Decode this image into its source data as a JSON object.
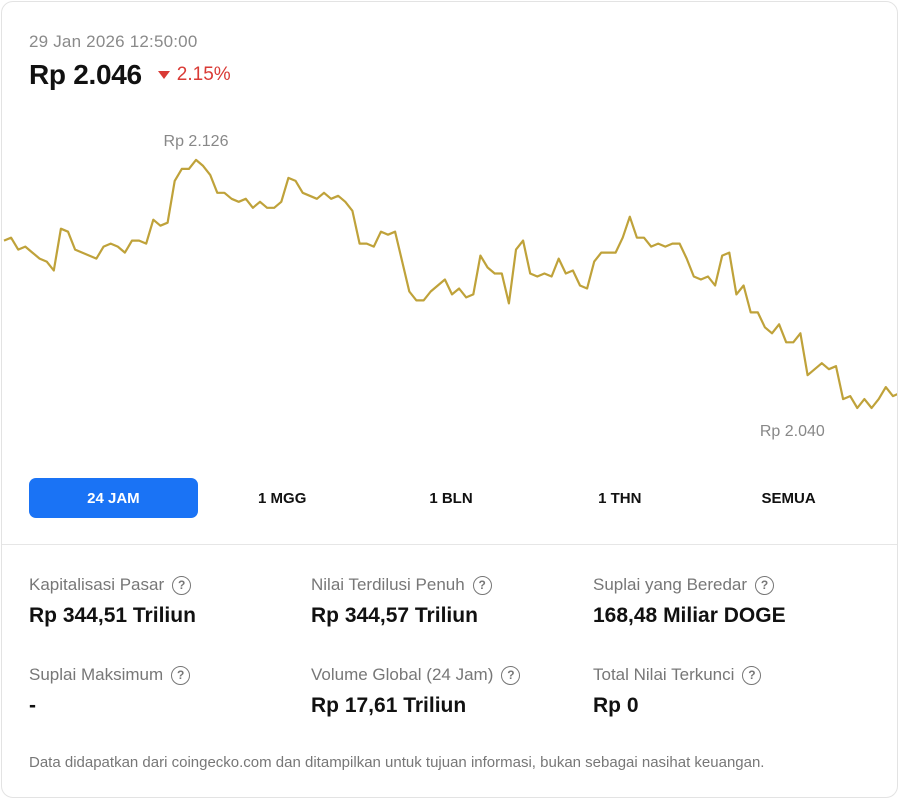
{
  "header": {
    "timestamp": "29 Jan 2026 12:50:00",
    "price": "Rp 2.046",
    "change": "2.15%",
    "change_direction": "down",
    "change_color": "#d93a35"
  },
  "chart_data": {
    "type": "line",
    "line_color": "#bfa23a",
    "grid": false,
    "high_label": "Rp 2.126",
    "low_label": "Rp 2.040",
    "ylim": [
      2038,
      2130
    ],
    "values": [
      2097,
      2098,
      2094,
      2095,
      2093,
      2091,
      2090,
      2087,
      2101,
      2100,
      2094,
      2093,
      2092,
      2091,
      2095,
      2096,
      2095,
      2093,
      2097,
      2097,
      2096,
      2104,
      2102,
      2103,
      2117,
      2121,
      2121,
      2124,
      2122,
      2119,
      2113,
      2113,
      2111,
      2110,
      2111,
      2108,
      2110,
      2108,
      2108,
      2110,
      2118,
      2117,
      2113,
      2112,
      2111,
      2113,
      2111,
      2112,
      2110,
      2107,
      2096,
      2096,
      2095,
      2100,
      2099,
      2100,
      2090,
      2080,
      2077,
      2077,
      2080,
      2082,
      2084,
      2079,
      2081,
      2078,
      2079,
      2092,
      2088,
      2086,
      2086,
      2076,
      2094,
      2097,
      2086,
      2085,
      2086,
      2085,
      2091,
      2086,
      2087,
      2082,
      2081,
      2090,
      2093,
      2093,
      2093,
      2098,
      2105,
      2098,
      2098,
      2095,
      2096,
      2095,
      2096,
      2096,
      2091,
      2085,
      2084,
      2085,
      2082,
      2092,
      2093,
      2079,
      2082,
      2073,
      2073,
      2068,
      2066,
      2069,
      2063,
      2063,
      2066,
      2052,
      2054,
      2056,
      2054,
      2055,
      2044,
      2045,
      2041,
      2044,
      2041,
      2044,
      2048,
      2045,
      2046
    ],
    "currency": "Rp"
  },
  "tabs": [
    {
      "label": "24 JAM",
      "active": true
    },
    {
      "label": "1 MGG",
      "active": false
    },
    {
      "label": "1 BLN",
      "active": false
    },
    {
      "label": "1 THN",
      "active": false
    },
    {
      "label": "SEMUA",
      "active": false
    }
  ],
  "accent_color": "#1a73f5",
  "stats": [
    {
      "label": "Kapitalisasi Pasar",
      "value": "Rp 344,51 Triliun"
    },
    {
      "label": "Nilai Terdilusi Penuh",
      "value": "Rp 344,57 Triliun"
    },
    {
      "label": "Suplai yang Beredar",
      "value": "168,48 Miliar DOGE"
    },
    {
      "label": "Suplai Maksimum",
      "value": "-"
    },
    {
      "label": "Volume Global (24 Jam)",
      "value": "Rp 17,61 Triliun"
    },
    {
      "label": "Total Nilai Terkunci",
      "value": "Rp 0"
    }
  ],
  "help_icon": "question-circle-icon",
  "disclaimer": "Data didapatkan dari coingecko.com dan ditampilkan untuk tujuan informasi, bukan sebagai nasihat keuangan."
}
